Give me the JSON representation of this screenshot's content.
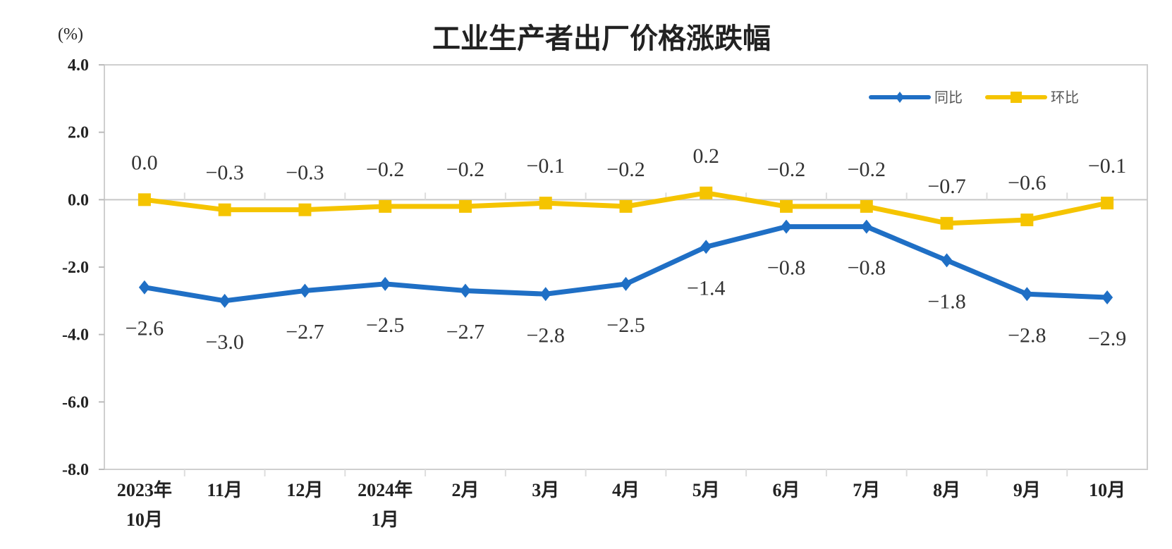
{
  "chart_data": {
    "type": "line",
    "title": "工业生产者出厂价格涨跌幅",
    "ylabel": "(%)",
    "ylim": [
      -8,
      4
    ],
    "yticks": [
      "4.0",
      "2.0",
      "0.0",
      "-2.0",
      "-4.0",
      "-6.0",
      "-8.0"
    ],
    "ytick_values": [
      4,
      2,
      0,
      -2,
      -4,
      -6,
      -8
    ],
    "categories": [
      [
        "2023年",
        "10月"
      ],
      [
        "11月"
      ],
      [
        "12月"
      ],
      [
        "2024年",
        "1月"
      ],
      [
        "2月"
      ],
      [
        "3月"
      ],
      [
        "4月"
      ],
      [
        "5月"
      ],
      [
        "6月"
      ],
      [
        "7月"
      ],
      [
        "8月"
      ],
      [
        "9月"
      ],
      [
        "10月"
      ]
    ],
    "series": [
      {
        "name": "同比",
        "color": "#1f6fc5",
        "marker": "diamond",
        "values": [
          -2.6,
          -3.0,
          -2.7,
          -2.5,
          -2.7,
          -2.8,
          -2.5,
          -1.4,
          -0.8,
          -0.8,
          -1.8,
          -2.8,
          -2.9
        ],
        "labels": [
          "-2.6",
          "-3.0",
          "-2.7",
          "-2.5",
          "-2.7",
          "-2.8",
          "-2.5",
          "-1.4",
          "-0.8",
          "-0.8",
          "-1.8",
          "-2.8",
          "-2.9"
        ]
      },
      {
        "name": "环比",
        "color": "#f5c400",
        "marker": "square",
        "values": [
          0.0,
          -0.3,
          -0.3,
          -0.2,
          -0.2,
          -0.1,
          -0.2,
          0.2,
          -0.2,
          -0.2,
          -0.7,
          -0.6,
          -0.1
        ],
        "labels": [
          "0.0",
          "-0.3",
          "-0.3",
          "-0.2",
          "-0.2",
          "-0.1",
          "-0.2",
          "0.2",
          "-0.2",
          "-0.2",
          "-0.7",
          "-0.6",
          "-0.1"
        ]
      }
    ],
    "legend": "top-right",
    "grid": false
  }
}
